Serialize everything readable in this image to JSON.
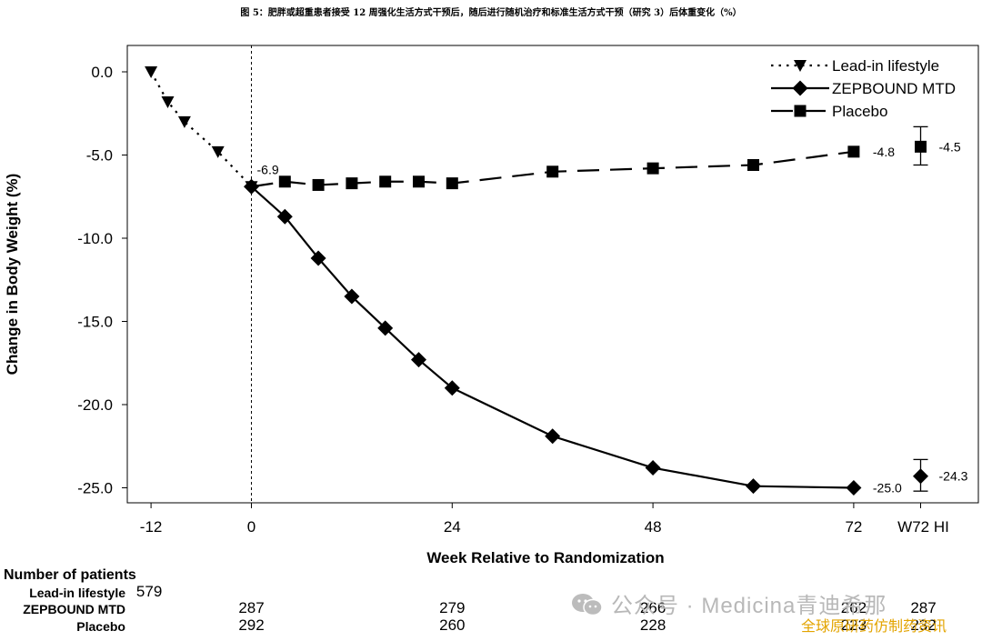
{
  "caption": "图 5：肥胖或超重患者接受 12 周强化生活方式干预后，随后进行随机治疗和标准生活方式干预（研究 3）后体重变化（%）",
  "chart_data": {
    "type": "line",
    "title": "",
    "xlabel": "Week Relative to Randomization",
    "ylabel": "Change in Body Weight (%)",
    "xlim": [
      -12,
      80
    ],
    "ylim": [
      -25,
      0
    ],
    "x_ticks": [
      {
        "value": -12,
        "label": "-12"
      },
      {
        "value": 0,
        "label": "0"
      },
      {
        "value": 24,
        "label": "24"
      },
      {
        "value": 48,
        "label": "48"
      },
      {
        "value": 72,
        "label": "72"
      },
      {
        "value": 80,
        "label": "W72 HI"
      }
    ],
    "y_ticks": [
      {
        "value": 0,
        "label": "0.0"
      },
      {
        "value": -5,
        "label": "-5.0"
      },
      {
        "value": -10,
        "label": "-10.0"
      },
      {
        "value": -15,
        "label": "-15.0"
      },
      {
        "value": -20,
        "label": "-20.0"
      },
      {
        "value": -25,
        "label": "-25.0"
      }
    ],
    "grid": false,
    "legend_position": "top-right",
    "randomization_line_x": 0,
    "series": [
      {
        "name": "Lead-in lifestyle",
        "line": "dotted",
        "marker": "triangle-down",
        "x": [
          -12,
          -10,
          -8,
          -4,
          0
        ],
        "y": [
          0.0,
          -1.8,
          -3.0,
          -4.8,
          -6.9
        ]
      },
      {
        "name": "ZEPBOUND MTD",
        "line": "solid",
        "marker": "diamond",
        "x": [
          0,
          4,
          8,
          12,
          16,
          20,
          24,
          36,
          48,
          60,
          72
        ],
        "y": [
          -6.9,
          -8.7,
          -11.2,
          -13.5,
          -15.4,
          -17.3,
          -19.0,
          -21.9,
          -23.8,
          -24.9,
          -25.0
        ]
      },
      {
        "name": "Placebo",
        "line": "dashed",
        "marker": "square",
        "x": [
          0,
          4,
          8,
          12,
          16,
          20,
          24,
          36,
          48,
          60,
          72
        ],
        "y": [
          -6.9,
          -6.6,
          -6.8,
          -6.7,
          -6.6,
          -6.6,
          -6.7,
          -6.0,
          -5.8,
          -5.6,
          -4.8
        ]
      }
    ],
    "hi_points": [
      {
        "series": "ZEPBOUND MTD",
        "marker": "diamond",
        "x": 80,
        "y": -24.3,
        "err_low": -25.2,
        "err_high": -23.3,
        "label": "-24.3"
      },
      {
        "series": "Placebo",
        "marker": "square",
        "x": 80,
        "y": -4.5,
        "err_low": -5.6,
        "err_high": -3.3,
        "label": "-4.5"
      }
    ],
    "annotations": [
      {
        "x": 0,
        "y": -6.9,
        "label": "-6.9",
        "position": "upper-right"
      },
      {
        "x": 72,
        "y": -25.0,
        "label": "-25.0",
        "position": "right"
      },
      {
        "x": 72,
        "y": -4.8,
        "label": "-4.8",
        "position": "right"
      }
    ]
  },
  "patients": {
    "header": "Number of patients",
    "rows": [
      {
        "label": "Lead-in lifestyle",
        "counts": [
          {
            "x": -12,
            "n": "579"
          }
        ]
      },
      {
        "label": "ZEPBOUND MTD",
        "counts": [
          {
            "x": 0,
            "n": "287"
          },
          {
            "x": 24,
            "n": "279"
          },
          {
            "x": 48,
            "n": "266"
          },
          {
            "x": 72,
            "n": "262"
          },
          {
            "x": 80,
            "n": "287"
          }
        ]
      },
      {
        "label": "Placebo",
        "counts": [
          {
            "x": 0,
            "n": "292"
          },
          {
            "x": 24,
            "n": "260"
          },
          {
            "x": 48,
            "n": "228"
          },
          {
            "x": 72,
            "n": "223"
          },
          {
            "x": 80,
            "n": "232"
          }
        ]
      }
    ]
  },
  "watermark": {
    "text": "公众号 · Medicina青迪希那",
    "icon": "wechat-icon",
    "subtext": "全球原研药仿制药资讯",
    "subtext_color": "#e3a400"
  }
}
